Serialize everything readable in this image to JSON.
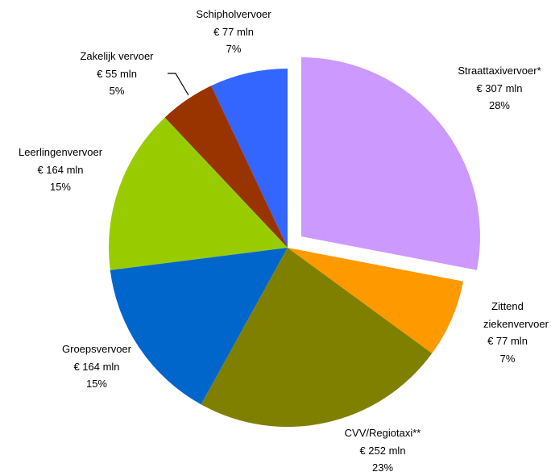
{
  "chart_data": {
    "type": "pie",
    "categories": [
      "Straattaxivervoer*",
      "Zittend ziekenvervoer",
      "CVV/Regiotaxi**",
      "Groepsvervoer",
      "Leerlingenvervoer",
      "Zakelijk vervoer",
      "Schipholvervoer"
    ],
    "values": [
      307,
      77,
      252,
      164,
      164,
      55,
      77
    ],
    "value_labels": [
      "€ 307 mln",
      "€ 77 mln",
      "€ 252 mln",
      "€ 164 mln",
      "€ 164 mln",
      "€ 55 mln",
      "€ 77 mln"
    ],
    "percentages": [
      28,
      7,
      23,
      15,
      15,
      5,
      7
    ],
    "percentage_labels": [
      "28%",
      "7%",
      "23%",
      "15%",
      "15%",
      "5%",
      "7%"
    ],
    "colors": [
      "#cc99ff",
      "#ff9900",
      "#808000",
      "#0066cc",
      "#99cc00",
      "#993300",
      "#3366ff"
    ]
  }
}
